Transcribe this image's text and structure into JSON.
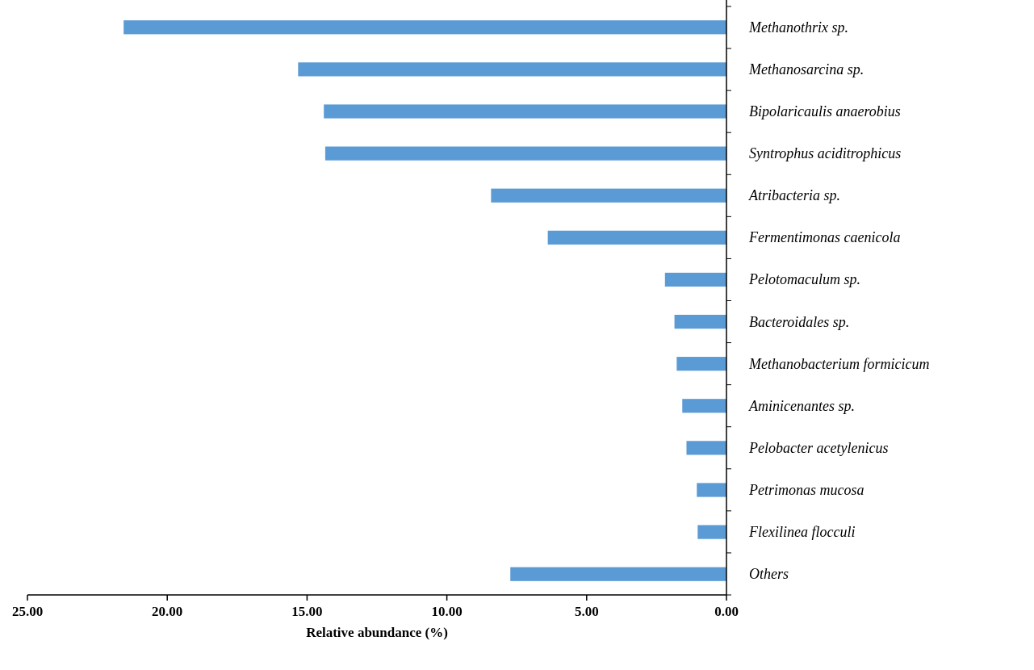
{
  "chart_data": {
    "type": "bar",
    "orientation": "horizontal",
    "xlabel": "Relative abundance (%)",
    "categories": [
      "Methanothrix sp.",
      "Methanosarcina sp.",
      "Bipolaricaulis anaerobius",
      "Syntrophus aciditrophicus",
      "Atribacteria sp.",
      "Fermentimonas caenicola",
      "Pelotomaculum sp.",
      "Bacteroidales sp.",
      "Methanobacterium formicicum",
      "Aminicenantes sp.",
      "Pelobacter acetylenicus",
      "Petrimonas mucosa",
      "Flexilinea flocculi",
      "Others"
    ],
    "values": [
      21.56,
      15.32,
      14.4,
      14.35,
      8.42,
      6.39,
      2.2,
      1.86,
      1.78,
      1.58,
      1.43,
      1.06,
      1.03,
      7.73
    ],
    "color": "#5b9bd5",
    "xlim": [
      25,
      0
    ],
    "xticks": [
      {
        "value": 25,
        "label": "25.00"
      },
      {
        "value": 20,
        "label": "20.00"
      },
      {
        "value": 15,
        "label": "15.00"
      },
      {
        "value": 10,
        "label": "10.00"
      },
      {
        "value": 5,
        "label": "5.00"
      },
      {
        "value": 0,
        "label": "0.00"
      }
    ],
    "grid": false
  }
}
